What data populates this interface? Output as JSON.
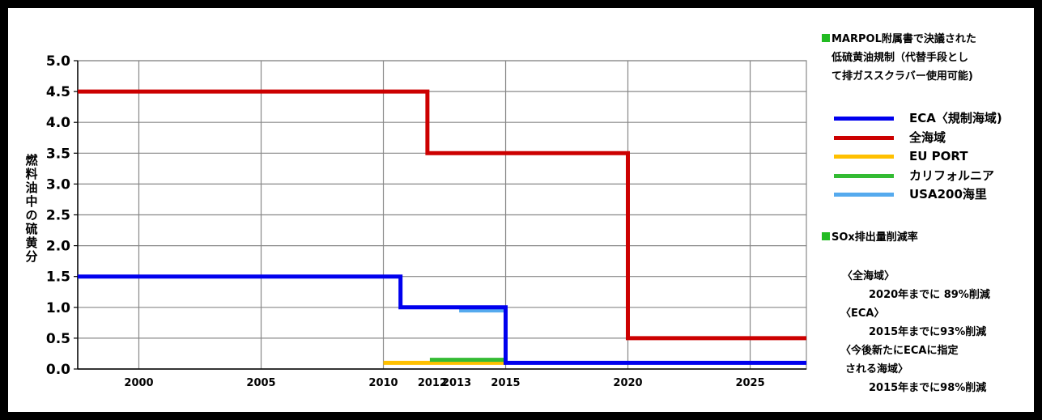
{
  "chart_data": {
    "type": "line",
    "ylabel": "燃料油中の硫黄分",
    "xlabel": "",
    "ylim": [
      0,
      5.0
    ],
    "xlim": [
      1997.5,
      2027.3
    ],
    "y_ticks": [
      "0.0",
      "0.5",
      "1.0",
      "1.5",
      "2.0",
      "2.5",
      "3.0",
      "3.5",
      "4.0",
      "4.5",
      "5.0"
    ],
    "x_ticks": [
      {
        "value": 2000,
        "label": "2000"
      },
      {
        "value": 2005,
        "label": "2005"
      },
      {
        "value": 2010,
        "label": "2010"
      },
      {
        "value": 2012,
        "label": "2012"
      },
      {
        "value": 2013,
        "label": "2013"
      },
      {
        "value": 2015,
        "label": "2015"
      },
      {
        "value": 2020,
        "label": "2020"
      },
      {
        "value": 2025,
        "label": "2025"
      }
    ],
    "x_gridlines": [
      2000,
      2005,
      2010,
      2015,
      2020,
      2025
    ],
    "grid": true,
    "series": [
      {
        "name": "ECA〈規制海域)",
        "color": "#0000ee",
        "width": 5,
        "points": [
          [
            1997.5,
            1.5
          ],
          [
            2010.7,
            1.5
          ],
          [
            2010.7,
            1.0
          ],
          [
            2015.0,
            1.0
          ],
          [
            2015.0,
            0.1
          ],
          [
            2027.3,
            0.1
          ]
        ]
      },
      {
        "name": "全海域",
        "color": "#cc0000",
        "width": 5,
        "points": [
          [
            1997.5,
            4.5
          ],
          [
            2011.8,
            4.5
          ],
          [
            2011.8,
            3.5
          ],
          [
            2020.0,
            3.5
          ],
          [
            2020.0,
            0.5
          ],
          [
            2027.3,
            0.5
          ]
        ]
      },
      {
        "name": "EU PORT",
        "color": "#ffc000",
        "width": 5,
        "points": [
          [
            2010.0,
            0.1
          ],
          [
            2015.0,
            0.1
          ]
        ]
      },
      {
        "name": "カリフォルニア",
        "color": "#33bb33",
        "width": 5,
        "points": [
          [
            2011.9,
            0.15
          ],
          [
            2015.0,
            0.15
          ]
        ]
      },
      {
        "name": "USA200海里",
        "color": "#55aaee",
        "width": 5,
        "points": [
          [
            2013.1,
            0.95
          ],
          [
            2015.0,
            0.95
          ]
        ]
      }
    ]
  },
  "notes": {
    "marpol_title_lines": [
      "MARPOL附属書で決議された",
      "低硫黄油規制（代替手段とし",
      "て排ガススクラバー使用可能)"
    ],
    "sox_title": "SOx排出量削減率",
    "sox_items": [
      {
        "label": "〈全海域〉",
        "value": "2020年までに 89%削減"
      },
      {
        "label": "〈ECA〉",
        "value": "2015年までに93%削減"
      },
      {
        "label": "〈今後新たにECAに指定",
        "label2": "される海域〉",
        "value": "2015年までに98%削減"
      }
    ],
    "square_color": "#22bb22"
  }
}
